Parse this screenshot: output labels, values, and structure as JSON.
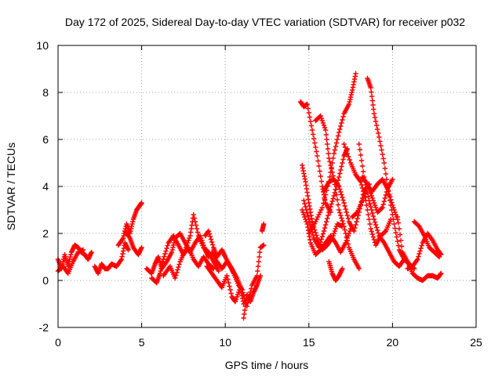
{
  "chart_data": {
    "type": "scatter",
    "title": "Day 172 of 2025, Sidereal Day-to-day VTEC variation (SDTVAR) for receiver p032",
    "xlabel": "GPS time / hours",
    "ylabel": "SDTVAR / TECUs",
    "xlim": [
      0,
      25
    ],
    "ylim": [
      -2,
      10
    ],
    "xticks": [
      "0",
      "5",
      "10",
      "15",
      "20",
      "25"
    ],
    "yticks": [
      "-2",
      "0",
      "2",
      "4",
      "6",
      "8",
      "10"
    ],
    "grid": true,
    "marker": "plus",
    "color": "#ff0000",
    "series": [
      {
        "name": "SDTVAR",
        "x": [
          0.0,
          0.2,
          0.4,
          0.6,
          0.8,
          1.0,
          1.2,
          1.4,
          1.6,
          1.8,
          2.0
        ],
        "y": [
          0.9,
          0.5,
          1.1,
          0.6,
          1.2,
          1.5,
          1.4,
          1.2,
          1.1,
          0.9,
          1.2
        ]
      },
      {
        "name": "SDTVAR",
        "x": [
          0.0,
          0.3,
          0.6,
          0.9,
          1.2,
          1.5
        ],
        "y": [
          0.4,
          0.6,
          0.3,
          0.8,
          1.2,
          1.3
        ]
      },
      {
        "name": "SDTVAR",
        "x": [
          2.2,
          2.4,
          2.6,
          2.8,
          3.0,
          3.2,
          3.5,
          3.8,
          4.0,
          4.2
        ],
        "y": [
          0.6,
          0.3,
          0.7,
          0.5,
          0.5,
          0.7,
          0.6,
          0.9,
          1.6,
          1.3
        ]
      },
      {
        "name": "SDTVAR",
        "x": [
          3.6,
          3.9,
          4.1,
          4.3,
          4.5,
          4.7,
          4.9,
          5.0
        ],
        "y": [
          1.5,
          1.8,
          2.4,
          2.0,
          2.6,
          3.0,
          3.2,
          3.3
        ]
      },
      {
        "name": "SDTVAR",
        "x": [
          4.0,
          4.3,
          4.5,
          4.8,
          5.0
        ],
        "y": [
          2.1,
          1.8,
          1.4,
          1.1,
          1.4
        ]
      },
      {
        "name": "SDTVAR",
        "x": [
          5.3,
          5.6,
          5.8,
          6.0,
          6.2,
          6.5,
          6.8,
          7.0,
          7.3,
          7.6,
          7.9,
          8.2,
          8.5,
          8.8,
          9.0
        ],
        "y": [
          0.5,
          0.3,
          0.7,
          1.0,
          0.5,
          0.8,
          1.2,
          1.8,
          2.0,
          1.6,
          1.2,
          1.6,
          1.9,
          1.3,
          1.0
        ]
      },
      {
        "name": "SDTVAR",
        "x": [
          5.6,
          5.9,
          6.1,
          6.3,
          6.6,
          6.9,
          7.2,
          7.5,
          7.8,
          8.1,
          8.4,
          8.7,
          9.0,
          9.3
        ],
        "y": [
          0.1,
          -0.1,
          0.3,
          0.9,
          1.6,
          1.9,
          1.5,
          1.1,
          1.4,
          0.9,
          0.6,
          1.0,
          0.7,
          0.5
        ]
      },
      {
        "name": "SDTVAR",
        "x": [
          6.3,
          6.7,
          7.0,
          7.3,
          7.6,
          7.9,
          8.1,
          8.4,
          8.7,
          9.0,
          9.3,
          9.6
        ],
        "y": [
          0.2,
          0.6,
          0.1,
          0.8,
          1.3,
          1.9,
          2.8,
          1.9,
          1.4,
          1.2,
          0.8,
          0.4
        ]
      },
      {
        "name": "SDTVAR",
        "x": [
          8.8,
          9.0,
          9.3,
          9.5,
          9.8,
          10.0,
          10.3,
          10.5,
          10.8,
          11.0
        ],
        "y": [
          1.9,
          2.1,
          1.4,
          1.0,
          1.3,
          1.0,
          0.6,
          0.3,
          -0.2,
          -0.4
        ]
      },
      {
        "name": "SDTVAR",
        "x": [
          8.9,
          9.2,
          9.5,
          9.8,
          10.1,
          10.4,
          10.6,
          10.9,
          11.1
        ],
        "y": [
          0.6,
          0.3,
          0.0,
          -0.3,
          0.2,
          -0.7,
          -0.9,
          -0.3,
          -1.0
        ]
      },
      {
        "name": "SDTVAR",
        "x": [
          9.2,
          9.5,
          9.8,
          10.1,
          10.4,
          10.7,
          11.0,
          11.3,
          11.6,
          11.9,
          12.1,
          12.3
        ],
        "y": [
          1.2,
          0.8,
          0.5,
          0.8,
          0.5,
          0.1,
          -0.4,
          -1.1,
          -0.2,
          0.2,
          1.4,
          1.5
        ]
      },
      {
        "name": "SDTVAR",
        "x": [
          11.1,
          11.3,
          11.5,
          11.7,
          11.9,
          12.1
        ],
        "y": [
          -1.6,
          -0.6,
          -0.9,
          -0.5,
          -0.2,
          0.2
        ]
      },
      {
        "name": "SDTVAR",
        "x": [
          12.2,
          12.3
        ],
        "y": [
          2.1,
          2.4
        ]
      },
      {
        "name": "SDTVAR",
        "x": [
          14.5,
          14.7,
          14.9,
          15.2,
          15.5,
          15.8,
          16.0,
          16.3
        ],
        "y": [
          7.6,
          7.4,
          7.5,
          6.4,
          5.3,
          4.0,
          3.3,
          2.9
        ]
      },
      {
        "name": "SDTVAR",
        "x": [
          14.6,
          14.8,
          15.0,
          15.2,
          15.5,
          15.8,
          16.1,
          16.4,
          16.7,
          17.0
        ],
        "y": [
          4.9,
          4.2,
          3.3,
          2.5,
          1.8,
          1.3,
          1.5,
          1.8,
          2.4,
          2.3
        ]
      },
      {
        "name": "SDTVAR",
        "x": [
          14.6,
          14.9,
          15.1,
          15.4,
          15.7,
          16.0,
          16.3,
          16.6,
          16.9,
          17.2,
          17.5
        ],
        "y": [
          3.0,
          2.4,
          1.6,
          1.1,
          1.3,
          1.6,
          1.9,
          1.6,
          1.2,
          1.6,
          2.2
        ]
      },
      {
        "name": "SDTVAR",
        "x": [
          14.7,
          15.0,
          15.3,
          15.6,
          15.9,
          16.2,
          16.5,
          16.8,
          17.1,
          17.3
        ],
        "y": [
          3.4,
          2.6,
          1.8,
          1.4,
          2.1,
          2.9,
          3.6,
          4.4,
          5.3,
          5.6
        ]
      },
      {
        "name": "SDTVAR",
        "x": [
          15.0,
          15.4,
          15.8,
          16.2,
          16.5,
          16.8,
          17.1,
          17.4,
          17.6,
          17.8
        ],
        "y": [
          2.0,
          2.5,
          3.1,
          4.2,
          5.4,
          6.3,
          7.1,
          7.5,
          8.1,
          8.8
        ]
      },
      {
        "name": "SDTVAR",
        "x": [
          15.4,
          15.7,
          16.0,
          16.2,
          16.5,
          16.8,
          17.1,
          17.4,
          17.7,
          18.0
        ],
        "y": [
          6.8,
          7.0,
          6.4,
          5.2,
          4.3,
          3.0,
          2.3,
          1.4,
          0.9,
          0.5
        ]
      },
      {
        "name": "SDTVAR",
        "x": [
          15.9,
          16.2,
          16.5,
          16.8,
          17.1,
          17.4,
          17.7,
          18.0,
          18.3,
          18.6
        ],
        "y": [
          3.8,
          4.2,
          4.3,
          4.0,
          3.3,
          2.5,
          2.1,
          2.9,
          3.8,
          4.1
        ]
      },
      {
        "name": "SDTVAR",
        "x": [
          16.2,
          16.4,
          16.6,
          16.8,
          17.0
        ],
        "y": [
          0.8,
          0.3,
          0.0,
          0.2,
          0.5
        ]
      },
      {
        "name": "SDTVAR",
        "x": [
          17.1,
          17.5,
          17.8,
          18.1,
          18.4,
          18.7,
          19.0,
          19.3,
          19.6,
          19.9
        ],
        "y": [
          5.8,
          5.0,
          4.5,
          4.2,
          3.4,
          2.2,
          1.5,
          1.9,
          2.1,
          2.6
        ]
      },
      {
        "name": "SDTVAR",
        "x": [
          17.6,
          17.9,
          18.2,
          18.5,
          18.8,
          19.1,
          19.4,
          19.7,
          20.0,
          20.3
        ],
        "y": [
          2.7,
          2.9,
          3.4,
          4.0,
          3.8,
          4.1,
          4.3,
          3.9,
          3.2,
          2.6
        ]
      },
      {
        "name": "SDTVAR",
        "x": [
          18.0,
          18.3,
          18.6,
          18.9,
          19.2,
          19.5,
          19.8,
          20.1,
          20.4,
          20.7,
          21.0,
          21.3
        ],
        "y": [
          5.8,
          4.4,
          3.4,
          2.6,
          1.9,
          1.6,
          1.2,
          0.8,
          0.6,
          0.9,
          0.7,
          0.5
        ]
      },
      {
        "name": "SDTVAR",
        "x": [
          18.5,
          18.7,
          18.9,
          19.2,
          19.5,
          19.8,
          20.1,
          20.4,
          20.7,
          21.0
        ],
        "y": [
          8.6,
          8.2,
          7.1,
          6.1,
          5.0,
          3.6,
          2.4,
          1.3,
          0.9,
          0.7
        ]
      },
      {
        "name": "SDTVAR",
        "x": [
          18.2,
          18.5,
          18.8,
          19.1,
          19.4,
          19.7,
          20.0
        ],
        "y": [
          4.4,
          4.1,
          3.5,
          2.9,
          3.1,
          3.9,
          4.3
        ]
      },
      {
        "name": "SDTVAR",
        "x": [
          20.3,
          20.6,
          20.9,
          21.2,
          21.5,
          21.8,
          22.1,
          22.4,
          22.7,
          22.9
        ],
        "y": [
          2.7,
          1.2,
          0.8,
          0.3,
          0.1,
          0.0,
          0.2,
          0.2,
          0.1,
          0.3
        ]
      },
      {
        "name": "SDTVAR",
        "x": [
          20.9,
          21.2,
          21.5,
          21.8,
          22.1,
          22.4,
          22.7,
          22.9
        ],
        "y": [
          0.5,
          0.6,
          0.9,
          1.6,
          2.0,
          1.7,
          1.3,
          1.1
        ]
      },
      {
        "name": "SDTVAR",
        "x": [
          21.3,
          21.6,
          21.9,
          22.2,
          22.5,
          22.8
        ],
        "y": [
          2.5,
          2.3,
          1.9,
          1.4,
          1.2,
          1.0
        ]
      }
    ]
  }
}
